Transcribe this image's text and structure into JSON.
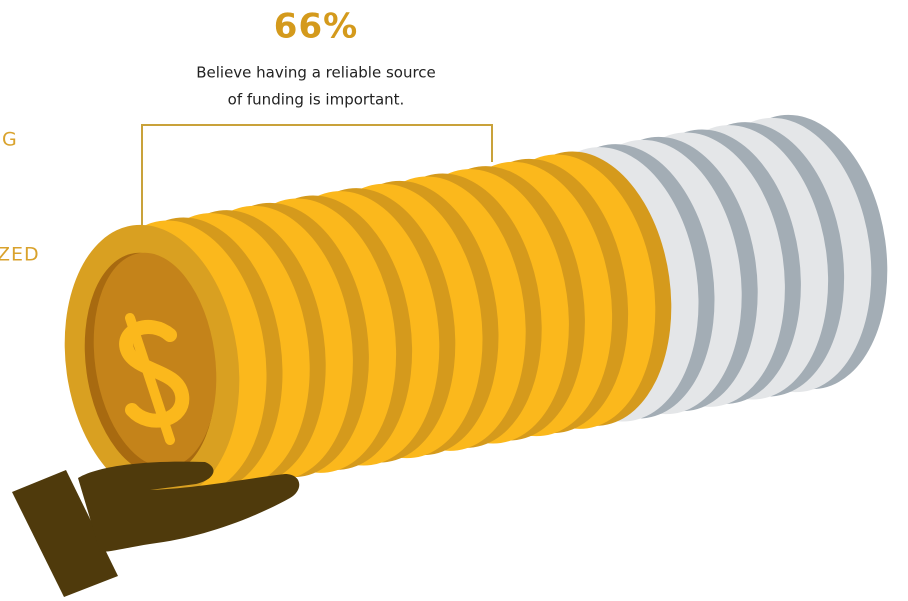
{
  "stat": "66%",
  "caption": [
    "Believe having a reliable source",
    "of funding is important."
  ],
  "side_labels": [
    "G",
    "ZED"
  ]
}
